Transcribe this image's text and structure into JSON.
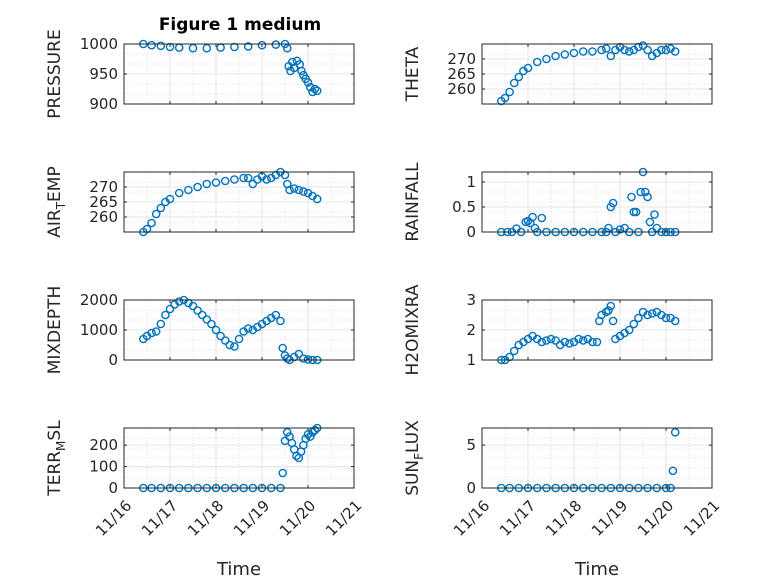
{
  "figure": {
    "title": "Figure 1 medium",
    "marker_color": "#0072bd",
    "axis_color": "#262626",
    "grid_color": "#dfdfdf"
  },
  "chart_data": [
    {
      "type": "scatter",
      "ylabel": "PRESSURE",
      "xlabel": "",
      "ylim": [
        900,
        1000
      ],
      "yticks": [
        "900",
        "950",
        "1000"
      ],
      "xlim": [
        0,
        5
      ],
      "grid": true,
      "show_xticks": false,
      "points": [
        [
          0.42,
          1000
        ],
        [
          0.6,
          998
        ],
        [
          0.8,
          997
        ],
        [
          1.0,
          995
        ],
        [
          1.2,
          994
        ],
        [
          1.5,
          993
        ],
        [
          1.8,
          993
        ],
        [
          2.1,
          994
        ],
        [
          2.4,
          995
        ],
        [
          2.7,
          996
        ],
        [
          3.0,
          998
        ],
        [
          3.3,
          999
        ],
        [
          3.5,
          1000
        ],
        [
          3.55,
          993
        ],
        [
          3.58,
          963
        ],
        [
          3.62,
          955
        ],
        [
          3.66,
          970
        ],
        [
          3.7,
          960
        ],
        [
          3.76,
          972
        ],
        [
          3.82,
          966
        ],
        [
          3.86,
          955
        ],
        [
          3.9,
          948
        ],
        [
          3.95,
          942
        ],
        [
          4.0,
          936
        ],
        [
          4.05,
          928
        ],
        [
          4.1,
          920
        ],
        [
          4.15,
          925
        ],
        [
          4.2,
          922
        ]
      ]
    },
    {
      "type": "scatter",
      "ylabel": "THETA",
      "xlabel": "",
      "ylim": [
        255,
        275
      ],
      "yticks": [
        "260",
        "265",
        "270"
      ],
      "xlim": [
        0,
        5
      ],
      "grid": true,
      "show_xticks": false,
      "points": [
        [
          0.42,
          256
        ],
        [
          0.5,
          257
        ],
        [
          0.6,
          259
        ],
        [
          0.7,
          262
        ],
        [
          0.8,
          264
        ],
        [
          0.9,
          266
        ],
        [
          1.0,
          267
        ],
        [
          1.2,
          269
        ],
        [
          1.4,
          270
        ],
        [
          1.6,
          271
        ],
        [
          1.8,
          271.5
        ],
        [
          2.0,
          272
        ],
        [
          2.2,
          272.5
        ],
        [
          2.4,
          272.5
        ],
        [
          2.6,
          273
        ],
        [
          2.7,
          273.5
        ],
        [
          2.8,
          271
        ],
        [
          2.9,
          273
        ],
        [
          3.0,
          274
        ],
        [
          3.1,
          273
        ],
        [
          3.2,
          272.5
        ],
        [
          3.3,
          273
        ],
        [
          3.4,
          274
        ],
        [
          3.5,
          274.5
        ],
        [
          3.6,
          273
        ],
        [
          3.7,
          271
        ],
        [
          3.8,
          272
        ],
        [
          3.9,
          273
        ],
        [
          4.0,
          273
        ],
        [
          4.1,
          273.5
        ],
        [
          4.2,
          272.5
        ]
      ]
    },
    {
      "type": "scatter",
      "ylabel": "AIR_TEMP",
      "ylabel_main": "AIR",
      "ylabel_sub": "T",
      "ylabel_rest": "EMP",
      "xlabel": "",
      "ylim": [
        255,
        275
      ],
      "yticks": [
        "260",
        "265",
        "270"
      ],
      "xlim": [
        0,
        5
      ],
      "grid": true,
      "show_xticks": false,
      "points": [
        [
          0.42,
          255
        ],
        [
          0.5,
          256
        ],
        [
          0.6,
          258
        ],
        [
          0.7,
          261
        ],
        [
          0.8,
          263
        ],
        [
          0.9,
          265
        ],
        [
          1.0,
          266
        ],
        [
          1.2,
          268
        ],
        [
          1.4,
          269
        ],
        [
          1.6,
          270
        ],
        [
          1.8,
          271
        ],
        [
          2.0,
          271.5
        ],
        [
          2.2,
          272
        ],
        [
          2.4,
          272.5
        ],
        [
          2.6,
          273
        ],
        [
          2.7,
          273
        ],
        [
          2.8,
          271
        ],
        [
          2.9,
          272.5
        ],
        [
          3.0,
          273.5
        ],
        [
          3.1,
          272.5
        ],
        [
          3.2,
          273
        ],
        [
          3.3,
          274
        ],
        [
          3.4,
          275
        ],
        [
          3.5,
          274
        ],
        [
          3.55,
          271
        ],
        [
          3.6,
          269
        ],
        [
          3.7,
          269.5
        ],
        [
          3.8,
          269
        ],
        [
          3.9,
          268.5
        ],
        [
          4.0,
          268
        ],
        [
          4.1,
          267
        ],
        [
          4.2,
          266
        ]
      ]
    },
    {
      "type": "scatter",
      "ylabel": "RAINFALL",
      "xlabel": "",
      "ylim": [
        0,
        1.2
      ],
      "yticks": [
        "0",
        "0.5",
        "1"
      ],
      "xlim": [
        0,
        5
      ],
      "grid": true,
      "show_xticks": false,
      "points": [
        [
          0.42,
          0
        ],
        [
          0.55,
          0
        ],
        [
          0.65,
          0
        ],
        [
          0.75,
          0.07
        ],
        [
          0.85,
          0
        ],
        [
          0.95,
          0.2
        ],
        [
          1.0,
          0.22
        ],
        [
          1.05,
          0.18
        ],
        [
          1.1,
          0.3
        ],
        [
          1.15,
          0.08
        ],
        [
          1.2,
          0
        ],
        [
          1.3,
          0.28
        ],
        [
          1.4,
          0
        ],
        [
          1.6,
          0
        ],
        [
          1.8,
          0
        ],
        [
          2.0,
          0
        ],
        [
          2.2,
          0
        ],
        [
          2.4,
          0
        ],
        [
          2.6,
          0
        ],
        [
          2.7,
          0
        ],
        [
          2.75,
          0.08
        ],
        [
          2.8,
          0.5
        ],
        [
          2.85,
          0.58
        ],
        [
          2.9,
          0
        ],
        [
          3.0,
          0.05
        ],
        [
          3.1,
          0.08
        ],
        [
          3.2,
          0
        ],
        [
          3.25,
          0.7
        ],
        [
          3.3,
          0.4
        ],
        [
          3.35,
          0.4
        ],
        [
          3.4,
          0
        ],
        [
          3.45,
          0.8
        ],
        [
          3.5,
          1.2
        ],
        [
          3.55,
          0.8
        ],
        [
          3.6,
          0.7
        ],
        [
          3.65,
          0.2
        ],
        [
          3.7,
          0
        ],
        [
          3.75,
          0.35
        ],
        [
          3.8,
          0.08
        ],
        [
          3.9,
          0
        ],
        [
          4.0,
          0
        ],
        [
          4.1,
          0
        ],
        [
          4.2,
          0
        ]
      ]
    },
    {
      "type": "scatter",
      "ylabel": "MIXDEPTH",
      "xlabel": "",
      "ylim": [
        0,
        2000
      ],
      "yticks": [
        "0",
        "1000",
        "2000"
      ],
      "xlim": [
        0,
        5
      ],
      "grid": true,
      "show_xticks": false,
      "points": [
        [
          0.42,
          700
        ],
        [
          0.5,
          800
        ],
        [
          0.6,
          900
        ],
        [
          0.7,
          950
        ],
        [
          0.8,
          1200
        ],
        [
          0.9,
          1500
        ],
        [
          1.0,
          1700
        ],
        [
          1.1,
          1850
        ],
        [
          1.2,
          1950
        ],
        [
          1.3,
          2000
        ],
        [
          1.4,
          1900
        ],
        [
          1.5,
          1800
        ],
        [
          1.6,
          1650
        ],
        [
          1.7,
          1500
        ],
        [
          1.8,
          1350
        ],
        [
          1.9,
          1200
        ],
        [
          2.0,
          1000
        ],
        [
          2.1,
          800
        ],
        [
          2.2,
          650
        ],
        [
          2.3,
          500
        ],
        [
          2.4,
          450
        ],
        [
          2.5,
          700
        ],
        [
          2.6,
          950
        ],
        [
          2.7,
          1050
        ],
        [
          2.8,
          1000
        ],
        [
          2.9,
          1100
        ],
        [
          3.0,
          1200
        ],
        [
          3.1,
          1300
        ],
        [
          3.2,
          1400
        ],
        [
          3.3,
          1500
        ],
        [
          3.4,
          1300
        ],
        [
          3.45,
          400
        ],
        [
          3.5,
          150
        ],
        [
          3.55,
          50
        ],
        [
          3.6,
          0
        ],
        [
          3.7,
          100
        ],
        [
          3.8,
          200
        ],
        [
          3.9,
          50
        ],
        [
          4.0,
          20
        ],
        [
          4.1,
          0
        ],
        [
          4.2,
          0
        ]
      ]
    },
    {
      "type": "scatter",
      "ylabel": "H2OMIXRA",
      "xlabel": "",
      "ylim": [
        1,
        3
      ],
      "yticks": [
        "1",
        "2",
        "3"
      ],
      "xlim": [
        0,
        5
      ],
      "grid": true,
      "show_xticks": false,
      "points": [
        [
          0.42,
          1.0
        ],
        [
          0.5,
          1.0
        ],
        [
          0.6,
          1.1
        ],
        [
          0.7,
          1.3
        ],
        [
          0.8,
          1.5
        ],
        [
          0.9,
          1.6
        ],
        [
          1.0,
          1.7
        ],
        [
          1.1,
          1.8
        ],
        [
          1.2,
          1.7
        ],
        [
          1.3,
          1.6
        ],
        [
          1.4,
          1.65
        ],
        [
          1.5,
          1.7
        ],
        [
          1.6,
          1.65
        ],
        [
          1.7,
          1.5
        ],
        [
          1.8,
          1.6
        ],
        [
          1.9,
          1.55
        ],
        [
          2.0,
          1.6
        ],
        [
          2.1,
          1.7
        ],
        [
          2.2,
          1.65
        ],
        [
          2.3,
          1.7
        ],
        [
          2.4,
          1.6
        ],
        [
          2.5,
          1.6
        ],
        [
          2.55,
          2.3
        ],
        [
          2.6,
          2.5
        ],
        [
          2.7,
          2.6
        ],
        [
          2.75,
          2.65
        ],
        [
          2.8,
          2.8
        ],
        [
          2.85,
          2.3
        ],
        [
          2.9,
          1.7
        ],
        [
          3.0,
          1.8
        ],
        [
          3.1,
          1.9
        ],
        [
          3.2,
          2.0
        ],
        [
          3.3,
          2.2
        ],
        [
          3.4,
          2.4
        ],
        [
          3.5,
          2.6
        ],
        [
          3.6,
          2.5
        ],
        [
          3.7,
          2.55
        ],
        [
          3.8,
          2.6
        ],
        [
          3.9,
          2.5
        ],
        [
          4.0,
          2.4
        ],
        [
          4.1,
          2.4
        ],
        [
          4.2,
          2.3
        ]
      ]
    },
    {
      "type": "scatter",
      "ylabel": "TERR_MSL",
      "ylabel_main": "TERR",
      "ylabel_sub": "M",
      "ylabel_rest": "SL",
      "xlabel": "Time",
      "ylim": [
        0,
        280
      ],
      "yticks": [
        "0",
        "100",
        "200"
      ],
      "xlim": [
        0,
        5
      ],
      "grid": true,
      "show_xticks": true,
      "xticklabels": [
        "11/16",
        "11/17",
        "11/18",
        "11/19",
        "11/20",
        "11/21"
      ],
      "points": [
        [
          0.42,
          0
        ],
        [
          0.6,
          0
        ],
        [
          0.8,
          0
        ],
        [
          1.0,
          0
        ],
        [
          1.2,
          0
        ],
        [
          1.4,
          0
        ],
        [
          1.6,
          0
        ],
        [
          1.8,
          0
        ],
        [
          2.0,
          0
        ],
        [
          2.2,
          0
        ],
        [
          2.4,
          0
        ],
        [
          2.6,
          0
        ],
        [
          2.8,
          0
        ],
        [
          3.0,
          0
        ],
        [
          3.2,
          0
        ],
        [
          3.4,
          0
        ],
        [
          3.45,
          70
        ],
        [
          3.5,
          220
        ],
        [
          3.55,
          260
        ],
        [
          3.6,
          240
        ],
        [
          3.65,
          210
        ],
        [
          3.7,
          180
        ],
        [
          3.75,
          150
        ],
        [
          3.8,
          140
        ],
        [
          3.85,
          170
        ],
        [
          3.9,
          200
        ],
        [
          3.95,
          230
        ],
        [
          4.0,
          250
        ],
        [
          4.05,
          240
        ],
        [
          4.1,
          260
        ],
        [
          4.15,
          270
        ],
        [
          4.2,
          280
        ]
      ]
    },
    {
      "type": "scatter",
      "ylabel": "SUN_FLUX",
      "ylabel_main": "SUN",
      "ylabel_sub": "F",
      "ylabel_rest": "LUX",
      "xlabel": "Time",
      "ylim": [
        0,
        7
      ],
      "yticks": [
        "0",
        "5"
      ],
      "xlim": [
        0,
        5
      ],
      "grid": true,
      "show_xticks": true,
      "xticklabels": [
        "11/16",
        "11/17",
        "11/18",
        "11/19",
        "11/20",
        "11/21"
      ],
      "points": [
        [
          0.42,
          0
        ],
        [
          0.6,
          0
        ],
        [
          0.8,
          0
        ],
        [
          1.0,
          0
        ],
        [
          1.2,
          0
        ],
        [
          1.4,
          0
        ],
        [
          1.6,
          0
        ],
        [
          1.8,
          0
        ],
        [
          2.0,
          0
        ],
        [
          2.2,
          0
        ],
        [
          2.4,
          0
        ],
        [
          2.6,
          0
        ],
        [
          2.8,
          0
        ],
        [
          3.0,
          0
        ],
        [
          3.2,
          0
        ],
        [
          3.4,
          0
        ],
        [
          3.6,
          0
        ],
        [
          3.8,
          0
        ],
        [
          4.0,
          0
        ],
        [
          4.1,
          0
        ],
        [
          4.15,
          2
        ],
        [
          4.2,
          6.5
        ]
      ]
    }
  ]
}
